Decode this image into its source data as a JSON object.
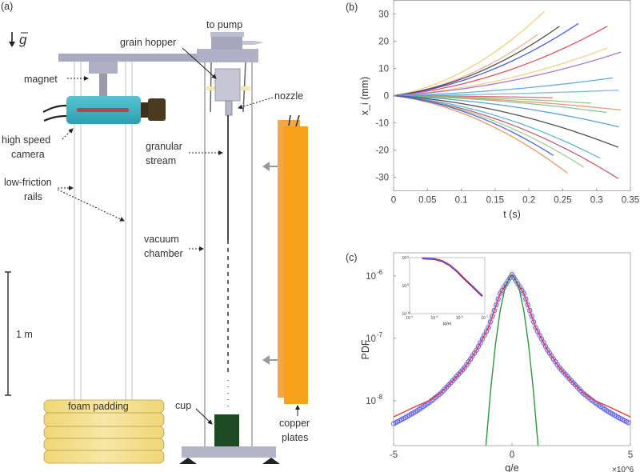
{
  "panel_labels": {
    "a": "(a)",
    "b": "(b)",
    "c": "(c)"
  },
  "diagram": {
    "gravity_label": "g",
    "labels": {
      "to_pump": "to pump",
      "grain_hopper": "grain hopper",
      "magnet": "magnet",
      "nozzle": "nozzle",
      "high_speed_camera": [
        "high speed",
        "camera"
      ],
      "granular_stream": [
        "granular",
        "stream"
      ],
      "low_friction_rails": [
        "low-friction",
        "rails"
      ],
      "vacuum_chamber": [
        "vacuum",
        "chamber"
      ],
      "scale_bar": "1 m",
      "foam_padding": "foam padding",
      "cup": "cup",
      "copper_plates": [
        "copper",
        "plates"
      ]
    },
    "colors": {
      "camera": "#3fb3c4",
      "lens": "#4a3a20",
      "copper_back": "#f5a640",
      "copper_front": "#f7a21a",
      "foam": "#f3dc8a",
      "cup": "#1d4a22",
      "frame": "#a9a9c0"
    }
  },
  "chart_data": [
    {
      "panel": "(b)",
      "type": "line",
      "xlabel": "t (s)",
      "ylabel": "x_i (mm)",
      "xlim": [
        0,
        0.35
      ],
      "ylim": [
        -35,
        35
      ],
      "xticks": [
        "0",
        "0.05",
        "0.1",
        "0.15",
        "0.2",
        "0.25",
        "0.3",
        "0.35"
      ],
      "yticks": [
        "30",
        "20",
        "10",
        "0",
        "-10",
        "-20",
        "-30"
      ],
      "grid": false,
      "series": [
        {
          "color": "#f0c860",
          "end": [
            0.223,
            31
          ]
        },
        {
          "color": "#f0a080",
          "end": [
            0.213,
            22.5
          ]
        },
        {
          "color": "#333333",
          "end": [
            0.245,
            25.5
          ]
        },
        {
          "color": "#2a40e0",
          "end": [
            0.273,
            26.5
          ]
        },
        {
          "color": "#e83040",
          "end": [
            0.316,
            25.5
          ]
        },
        {
          "color": "#f5c870",
          "end": [
            0.316,
            17.5
          ]
        },
        {
          "color": "#a060c0",
          "end": [
            0.336,
            16
          ]
        },
        {
          "color": "#4aa0d8",
          "end": [
            0.324,
            6.5
          ]
        },
        {
          "color": "#60b0e0",
          "end": [
            0.333,
            2
          ]
        },
        {
          "color": "#e85060",
          "end": [
            0.235,
            -0.8
          ]
        },
        {
          "color": "#80c070",
          "end": [
            0.292,
            -2.8
          ]
        },
        {
          "color": "#f08060",
          "end": [
            0.336,
            -5.3
          ]
        },
        {
          "color": "#70c080",
          "end": [
            0.315,
            -6.2
          ]
        },
        {
          "color": "#4090d0",
          "end": [
            0.333,
            -11.5
          ]
        },
        {
          "color": "#333333",
          "end": [
            0.332,
            -19
          ]
        },
        {
          "color": "#40a8e0",
          "end": [
            0.305,
            -23
          ]
        },
        {
          "color": "#c04060",
          "end": [
            0.332,
            -30.5
          ]
        },
        {
          "color": "#90c880",
          "end": [
            0.281,
            -26.3
          ]
        },
        {
          "color": "#f08050",
          "end": [
            0.257,
            -28.5
          ]
        },
        {
          "color": "#3050d0",
          "end": [
            0.236,
            -22
          ]
        }
      ]
    },
    {
      "panel": "(c)",
      "type": "line",
      "xlabel": "q/e",
      "x_multiplier": "×10^6",
      "ylabel": "PDF",
      "xlim": [
        -5,
        5
      ],
      "ylim_log10": [
        -8.72,
        -5.63
      ],
      "yscale": "log",
      "xticks": [
        "-5",
        "0",
        "5"
      ],
      "yticks": [
        {
          "log10": -6,
          "label": "10",
          "exp": "-6"
        },
        {
          "log10": -7,
          "label": "10",
          "exp": "-7"
        },
        {
          "log10": -8,
          "label": "10",
          "exp": "-8"
        }
      ],
      "series": [
        {
          "style": "circles",
          "color": "#3a3ae8",
          "q": [
            -5,
            -4.5,
            -4,
            -3.5,
            -3,
            -2.5,
            -2,
            -1.5,
            -1,
            -0.5,
            0,
            0.5,
            1,
            1.5,
            2,
            2.5,
            3,
            3.5,
            4,
            4.5,
            5
          ],
          "log10_pdf": [
            -8.37,
            -8.27,
            -8.16,
            -8.03,
            -7.88,
            -7.68,
            -7.47,
            -7.19,
            -6.83,
            -6.28,
            -5.98,
            -6.28,
            -6.83,
            -7.19,
            -7.47,
            -7.68,
            -7.88,
            -8.03,
            -8.16,
            -8.27,
            -8.37
          ]
        },
        {
          "style": "line",
          "color": "#e83a3a",
          "q": [
            -5,
            -4.5,
            -4,
            -3.5,
            -3,
            -2.5,
            -2,
            -1.5,
            -1,
            -0.5,
            0,
            0.5,
            1,
            1.5,
            2,
            2.5,
            3,
            3.5,
            4,
            4.5,
            5
          ],
          "log10_pdf": [
            -8.26,
            -8.17,
            -8.08,
            -8.0,
            -7.87,
            -7.68,
            -7.47,
            -7.19,
            -6.83,
            -6.28,
            -5.98,
            -6.28,
            -6.83,
            -7.19,
            -7.47,
            -7.68,
            -7.87,
            -8.0,
            -8.08,
            -8.17,
            -8.26
          ]
        },
        {
          "style": "line",
          "color": "#2a9a3a",
          "q": [
            -1.1,
            -0.9,
            -0.7,
            -0.5,
            -0.3,
            -0.1,
            0,
            0.1,
            0.3,
            0.5,
            0.7,
            0.9,
            1.1
          ],
          "log10_pdf": [
            -8.72,
            -7.82,
            -7.1,
            -6.56,
            -6.2,
            -6.02,
            -6.0,
            -6.02,
            -6.2,
            -6.56,
            -7.1,
            -7.82,
            -8.72
          ]
        }
      ],
      "inset": {
        "xlabel": "|q/e|",
        "xscale": "log",
        "yscale": "log",
        "xlim_log10": [
          4,
          7
        ],
        "ylim_log10": [
          -10,
          -6
        ],
        "xticks": [
          {
            "label": "10",
            "exp": "4"
          },
          {
            "label": "10",
            "exp": "5"
          },
          {
            "label": "10",
            "exp": "6"
          },
          {
            "label": "10",
            "exp": "7"
          }
        ],
        "yticks": [
          {
            "label": "10",
            "exp": "-6"
          },
          {
            "label": "10",
            "exp": "-8"
          },
          {
            "label": "10",
            "exp": "-10"
          }
        ],
        "series": [
          {
            "color": "#3a3ae8",
            "log10_q": [
              4.5,
              5,
              5.3,
              5.6,
              5.9,
              6.2,
              6.5,
              6.7,
              6.9
            ],
            "log10_pdf": [
              -6.05,
              -6.1,
              -6.25,
              -6.55,
              -7.0,
              -7.55,
              -8.05,
              -8.4,
              -8.75
            ]
          },
          {
            "color": "#e83a3a",
            "log10_q": [
              4.5,
              5,
              5.3,
              5.6,
              5.9,
              6.2,
              6.5,
              6.7,
              6.9
            ],
            "log10_pdf": [
              -6.05,
              -6.1,
              -6.25,
              -6.55,
              -7.0,
              -7.55,
              -8.05,
              -8.38,
              -8.68
            ]
          }
        ]
      }
    }
  ]
}
